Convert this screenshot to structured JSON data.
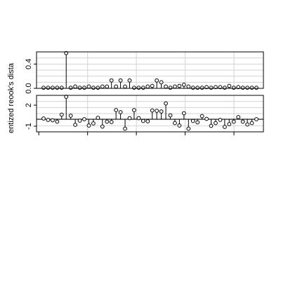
{
  "chart_data": [
    {
      "type": "scatter",
      "style": "needle plot with open circles",
      "ylabel_fragment": "Cook's distance",
      "ylim": [
        0,
        0.6
      ],
      "yticks": [
        0.0,
        0.4
      ],
      "ytick_labels": [
        "0.0",
        "0.4"
      ],
      "baseline": 0,
      "grid": true,
      "x": [
        1,
        2,
        3,
        4,
        5,
        6,
        7,
        8,
        9,
        10,
        11,
        12,
        13,
        14,
        15,
        16,
        17,
        18,
        19,
        20,
        21,
        22,
        23,
        24,
        25,
        26,
        27,
        28,
        29,
        30,
        31,
        32,
        33,
        34,
        35,
        36,
        37,
        38,
        39,
        40,
        41,
        42,
        43,
        44,
        45,
        46,
        47,
        48
      ],
      "values": [
        0.01,
        0.01,
        0.01,
        0.01,
        0.01,
        0.58,
        0.01,
        0.03,
        0.01,
        0.01,
        0.03,
        0.01,
        0.01,
        0.03,
        0.03,
        0.13,
        0.03,
        0.13,
        0.03,
        0.13,
        0.01,
        0.01,
        0.01,
        0.03,
        0.04,
        0.13,
        0.1,
        0.03,
        0.01,
        0.03,
        0.04,
        0.06,
        0.03,
        0.01,
        0.01,
        0.01,
        0.02,
        0.01,
        0.02,
        0.02,
        0.01,
        0.04,
        0.01,
        0.02,
        0.01,
        0.01,
        0.01,
        0.01
      ]
    },
    {
      "type": "scatter",
      "style": "needle plot with open circles",
      "ylabel_fragment": "entized re",
      "ylim": [
        -1.8,
        3.4
      ],
      "yticks": [
        -1,
        2
      ],
      "ytick_labels": [
        "-1",
        "2"
      ],
      "baseline": 0,
      "grid": true,
      "x": [
        1,
        2,
        3,
        4,
        5,
        6,
        7,
        8,
        9,
        10,
        11,
        12,
        13,
        14,
        15,
        16,
        17,
        18,
        19,
        20,
        21,
        22,
        23,
        24,
        25,
        26,
        27,
        28,
        29,
        30,
        31,
        32,
        33,
        34,
        35,
        36,
        37,
        38,
        39,
        40,
        41,
        42,
        43,
        44,
        45,
        46,
        47,
        48
      ],
      "values": [
        0.1,
        -0.1,
        -0.15,
        -0.35,
        0.65,
        3.2,
        0.5,
        -0.8,
        -0.2,
        0.0,
        -0.9,
        -0.6,
        0.2,
        -1.05,
        -0.35,
        -0.4,
        1.3,
        1.0,
        -1.35,
        0.15,
        1.3,
        0.15,
        -0.25,
        -0.3,
        1.25,
        1.2,
        1.1,
        2.25,
        0.55,
        -0.55,
        -0.9,
        0.85,
        -1.35,
        -0.25,
        -0.45,
        0.45,
        0.05,
        -0.95,
        -0.55,
        -0.1,
        -1.1,
        -0.7,
        -0.35,
        0.3,
        -0.35,
        -0.75,
        -0.55,
        0.0
      ]
    }
  ],
  "axis_labels": {
    "ylabel_text": "entized reook's dista"
  }
}
